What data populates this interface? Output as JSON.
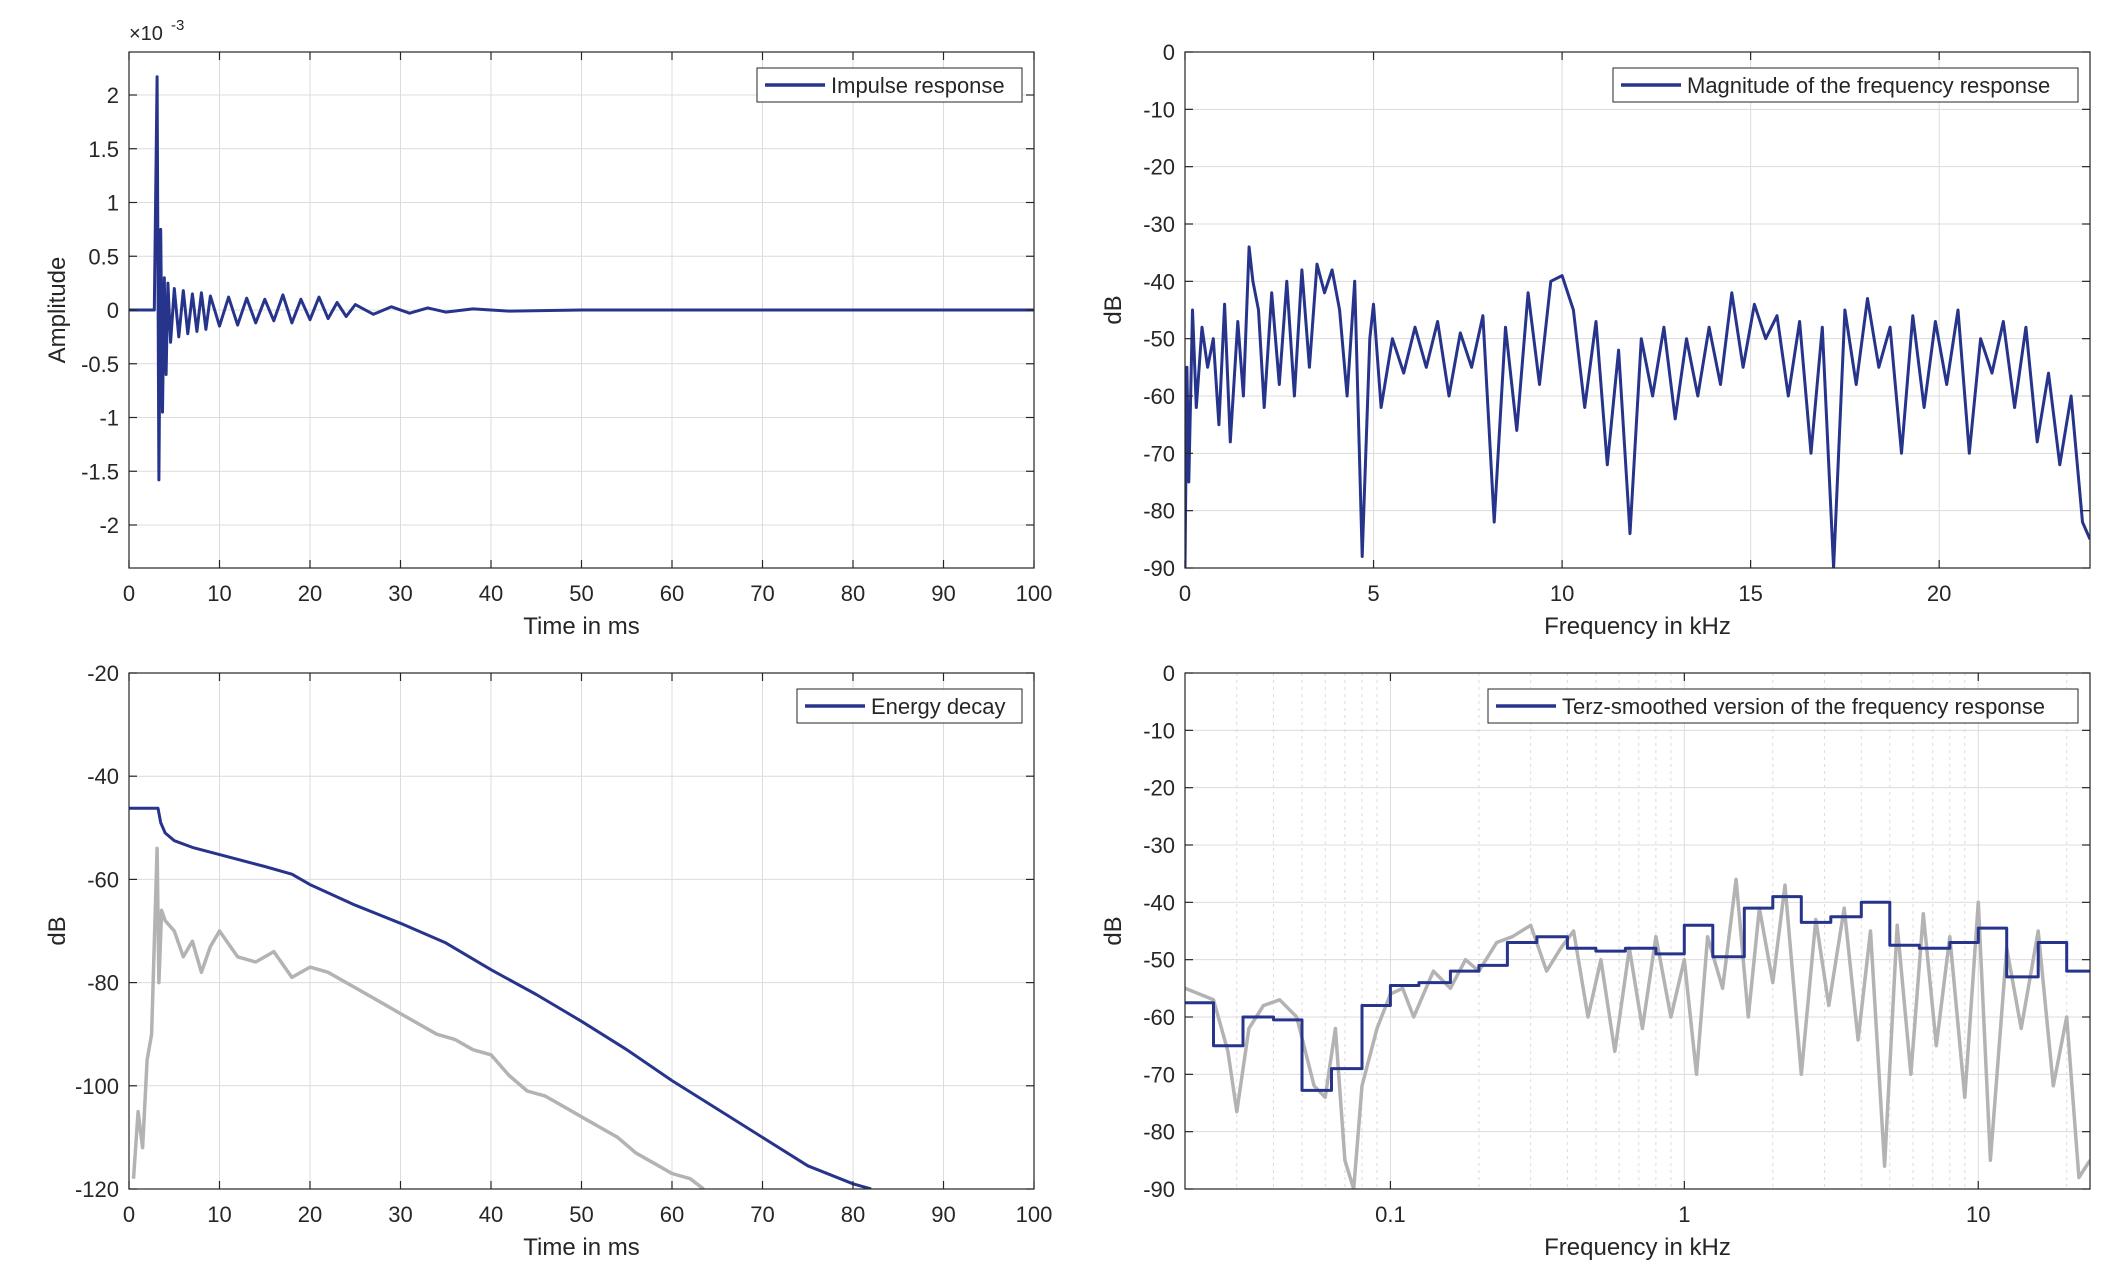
{
  "figure": {
    "colors": {
      "series": "#27348b",
      "gray": "#b3b3b3",
      "grid": "#dcdcdc",
      "axis": "#262626",
      "legend_border": "#262626"
    }
  },
  "chart_data": [
    {
      "id": "ir",
      "type": "line",
      "xlabel": "Time in ms",
      "ylabel": "Amplitude",
      "exponent_label": "×10",
      "exponent_power": "-3",
      "xlim": [
        0,
        100
      ],
      "ylim": [
        -2.4,
        2.4
      ],
      "xticks": [
        0,
        10,
        20,
        30,
        40,
        50,
        60,
        70,
        80,
        90,
        100
      ],
      "xtick_labels": [
        "0",
        "10",
        "20",
        "30",
        "40",
        "50",
        "60",
        "70",
        "80",
        "90",
        "100"
      ],
      "yticks": [
        2,
        1.5,
        1,
        0.5,
        0,
        -0.5,
        -1,
        -1.5,
        -2
      ],
      "ytick_labels": [
        "2",
        "1.5",
        "1",
        "0.5",
        "0",
        "-0.5",
        "-1",
        "-1.5",
        "-2"
      ],
      "grid": true,
      "legend": "top-right",
      "series": [
        {
          "name": "Impulse response",
          "color_key": "series",
          "x": [
            0,
            2.8,
            3.1,
            3.3,
            3.5,
            3.7,
            3.9,
            4.1,
            4.3,
            4.6,
            5.0,
            5.5,
            6.0,
            6.5,
            7.0,
            7.5,
            8.0,
            8.5,
            9.0,
            10,
            11,
            12,
            13,
            14,
            15,
            16,
            17,
            18,
            19,
            20,
            21,
            22,
            23,
            24,
            25,
            27,
            29,
            31,
            33,
            35,
            38,
            42,
            50,
            100
          ],
          "y": [
            0,
            0,
            2.17,
            -1.58,
            0.75,
            -0.95,
            0.3,
            -0.6,
            0.25,
            -0.3,
            0.2,
            -0.25,
            0.18,
            -0.22,
            0.15,
            -0.2,
            0.16,
            -0.18,
            0.13,
            -0.15,
            0.12,
            -0.14,
            0.11,
            -0.12,
            0.1,
            -0.1,
            0.14,
            -0.12,
            0.1,
            -0.09,
            0.12,
            -0.08,
            0.07,
            -0.06,
            0.05,
            -0.04,
            0.03,
            -0.03,
            0.02,
            -0.02,
            0.01,
            -0.01,
            0,
            0
          ]
        }
      ]
    },
    {
      "id": "mag",
      "type": "line",
      "xlabel": "Frequency in kHz",
      "ylabel": "dB",
      "xlim": [
        0,
        24
      ],
      "ylim": [
        -90,
        0
      ],
      "xticks": [
        0,
        5,
        10,
        15,
        20
      ],
      "xtick_labels": [
        "0",
        "5",
        "10",
        "15",
        "20"
      ],
      "yticks": [
        0,
        -10,
        -20,
        -30,
        -40,
        -50,
        -60,
        -70,
        -80,
        -90
      ],
      "ytick_labels": [
        "0",
        "-10",
        "-20",
        "-30",
        "-40",
        "-50",
        "-60",
        "-70",
        "-80",
        "-90"
      ],
      "grid": true,
      "legend": "top-right",
      "series": [
        {
          "name": "Magnitude of the frequency response",
          "color_key": "series",
          "x": [
            0,
            0.05,
            0.1,
            0.2,
            0.3,
            0.45,
            0.6,
            0.75,
            0.9,
            1.05,
            1.2,
            1.4,
            1.55,
            1.7,
            1.8,
            1.95,
            2.1,
            2.3,
            2.5,
            2.7,
            2.9,
            3.1,
            3.3,
            3.5,
            3.7,
            3.9,
            4.1,
            4.3,
            4.5,
            4.7,
            4.9,
            5.0,
            5.2,
            5.5,
            5.8,
            6.1,
            6.4,
            6.7,
            7.0,
            7.3,
            7.6,
            7.9,
            8.2,
            8.5,
            8.8,
            9.1,
            9.4,
            9.7,
            10.0,
            10.3,
            10.6,
            10.9,
            11.2,
            11.5,
            11.8,
            12.1,
            12.4,
            12.7,
            13.0,
            13.3,
            13.6,
            13.9,
            14.2,
            14.5,
            14.8,
            15.1,
            15.4,
            15.7,
            16.0,
            16.3,
            16.6,
            16.9,
            17.2,
            17.5,
            17.8,
            18.1,
            18.4,
            18.7,
            19.0,
            19.3,
            19.6,
            19.9,
            20.2,
            20.5,
            20.8,
            21.1,
            21.4,
            21.7,
            22.0,
            22.3,
            22.6,
            22.9,
            23.2,
            23.5,
            23.8,
            24.0
          ],
          "y": [
            -90,
            -55,
            -75,
            -45,
            -62,
            -48,
            -55,
            -50,
            -65,
            -44,
            -68,
            -47,
            -60,
            -34,
            -40,
            -45,
            -62,
            -42,
            -58,
            -40,
            -60,
            -38,
            -55,
            -37,
            -42,
            -38,
            -45,
            -60,
            -40,
            -88,
            -50,
            -44,
            -62,
            -50,
            -56,
            -48,
            -55,
            -47,
            -60,
            -49,
            -55,
            -46,
            -82,
            -48,
            -66,
            -42,
            -58,
            -40,
            -39,
            -45,
            -62,
            -47,
            -72,
            -52,
            -84,
            -50,
            -60,
            -48,
            -64,
            -50,
            -60,
            -48,
            -58,
            -42,
            -55,
            -44,
            -50,
            -46,
            -60,
            -47,
            -70,
            -48,
            -90,
            -45,
            -58,
            -43,
            -55,
            -48,
            -70,
            -46,
            -62,
            -47,
            -58,
            -45,
            -70,
            -50,
            -56,
            -47,
            -62,
            -48,
            -68,
            -56,
            -72,
            -60,
            -82,
            -85
          ]
        }
      ]
    },
    {
      "id": "decay",
      "type": "line",
      "xlabel": "Time in ms",
      "ylabel": "dB",
      "xlim": [
        0,
        100
      ],
      "ylim": [
        -120,
        -20
      ],
      "xticks": [
        0,
        10,
        20,
        30,
        40,
        50,
        60,
        70,
        80,
        90,
        100
      ],
      "xtick_labels": [
        "0",
        "10",
        "20",
        "30",
        "40",
        "50",
        "60",
        "70",
        "80",
        "90",
        "100"
      ],
      "yticks": [
        -20,
        -40,
        -60,
        -80,
        -100,
        -120
      ],
      "ytick_labels": [
        "-20",
        "-40",
        "-60",
        "-80",
        "-100",
        "-120"
      ],
      "grid": true,
      "legend": "top-right",
      "series": [
        {
          "name": "Energy decay",
          "color_key": "series",
          "x": [
            0,
            3.2,
            3.5,
            4,
            5,
            7,
            10,
            15,
            18,
            20,
            25,
            30,
            35,
            40,
            45,
            50,
            55,
            60,
            65,
            70,
            75,
            80,
            82
          ],
          "y": [
            -46.2,
            -46.2,
            -49,
            -51,
            -52.5,
            -53.8,
            -55.2,
            -57.5,
            -59,
            -61,
            -65,
            -68.5,
            -72.3,
            -77.5,
            -82.3,
            -87.5,
            -93,
            -99,
            -104.5,
            -110,
            -115.5,
            -119,
            -120
          ]
        },
        {
          "name": "",
          "color_key": "gray",
          "x": [
            0.5,
            1,
            1.5,
            2,
            2.5,
            3.1,
            3.3,
            3.6,
            4,
            5,
            6,
            7,
            8,
            9,
            10,
            12,
            14,
            16,
            18,
            20,
            22,
            24,
            26,
            28,
            30,
            32,
            34,
            36,
            38,
            40,
            42,
            44,
            46,
            48,
            50,
            52,
            54,
            56,
            58,
            60,
            62,
            63.5
          ],
          "y": [
            -118,
            -105,
            -112,
            -95,
            -90,
            -54,
            -80,
            -66,
            -68,
            -70,
            -75,
            -72,
            -78,
            -73,
            -70,
            -75,
            -76,
            -74,
            -79,
            -77,
            -78,
            -80,
            -82,
            -84,
            -86,
            -88,
            -90,
            -91,
            -93,
            -94,
            -98,
            -101,
            -102,
            -104,
            -106,
            -108,
            -110,
            -113,
            -115,
            -117,
            -118,
            -120
          ]
        }
      ]
    },
    {
      "id": "terz",
      "type": "line",
      "xlabel": "Frequency in kHz",
      "ylabel": "dB",
      "xscale": "log",
      "xlim": [
        0.02,
        24
      ],
      "ylim": [
        -90,
        0
      ],
      "xticks": [
        0.1,
        1,
        10
      ],
      "xtick_labels": [
        "0.1",
        "1",
        "10"
      ],
      "yticks": [
        0,
        -10,
        -20,
        -30,
        -40,
        -50,
        -60,
        -70,
        -80,
        -90
      ],
      "ytick_labels": [
        "0",
        "-10",
        "-20",
        "-30",
        "-40",
        "-50",
        "-60",
        "-70",
        "-80",
        "-90"
      ],
      "grid": true,
      "legend": "top-right",
      "series": [
        {
          "name": "Terz-smoothed version of the frequency response",
          "color_key": "series",
          "step": true,
          "x": [
            0.02,
            0.025,
            0.0315,
            0.04,
            0.05,
            0.063,
            0.08,
            0.1,
            0.125,
            0.16,
            0.2,
            0.25,
            0.315,
            0.4,
            0.5,
            0.63,
            0.8,
            1.0,
            1.25,
            1.6,
            2.0,
            2.5,
            3.15,
            4.0,
            5.0,
            6.3,
            8.0,
            10.0,
            12.5,
            16.0,
            20.0,
            24
          ],
          "y": [
            -57.5,
            -65,
            -60,
            -60.5,
            -72.8,
            -69,
            -58,
            -54.5,
            -54,
            -52,
            -51,
            -47,
            -46,
            -48,
            -48.5,
            -48,
            -49,
            -44,
            -49.5,
            -41,
            -39,
            -43.5,
            -42.5,
            -40,
            -47.5,
            -48,
            -47,
            -44.5,
            -53,
            -47,
            -52,
            -52
          ]
        },
        {
          "name": "",
          "color_key": "gray",
          "x": [
            0.02,
            0.025,
            0.028,
            0.03,
            0.033,
            0.037,
            0.042,
            0.048,
            0.055,
            0.06,
            0.065,
            0.07,
            0.075,
            0.08,
            0.09,
            0.1,
            0.11,
            0.12,
            0.14,
            0.16,
            0.18,
            0.2,
            0.23,
            0.26,
            0.3,
            0.34,
            0.38,
            0.42,
            0.47,
            0.52,
            0.58,
            0.65,
            0.72,
            0.8,
            0.9,
            1.0,
            1.1,
            1.2,
            1.35,
            1.5,
            1.65,
            1.8,
            2.0,
            2.2,
            2.5,
            2.8,
            3.1,
            3.5,
            3.9,
            4.3,
            4.8,
            5.3,
            5.9,
            6.5,
            7.2,
            8.0,
            9.0,
            10.0,
            11.0,
            12.5,
            14.0,
            16.0,
            18.0,
            20.0,
            22.0,
            24.0
          ],
          "y": [
            -55,
            -57,
            -66,
            -76.5,
            -62,
            -58,
            -57,
            -60,
            -72,
            -74,
            -62,
            -85,
            -90,
            -72,
            -62,
            -56,
            -55,
            -60,
            -52,
            -55,
            -50,
            -52,
            -47,
            -46,
            -44,
            -52,
            -48,
            -45,
            -60,
            -50,
            -66,
            -48,
            -62,
            -46,
            -60,
            -50,
            -70,
            -46,
            -55,
            -36,
            -60,
            -41,
            -54,
            -37,
            -70,
            -43,
            -58,
            -41,
            -64,
            -45,
            -86,
            -44,
            -70,
            -42,
            -65,
            -46,
            -74,
            -40,
            -85,
            -48,
            -62,
            -45,
            -72,
            -60,
            -88,
            -85
          ]
        }
      ]
    }
  ]
}
